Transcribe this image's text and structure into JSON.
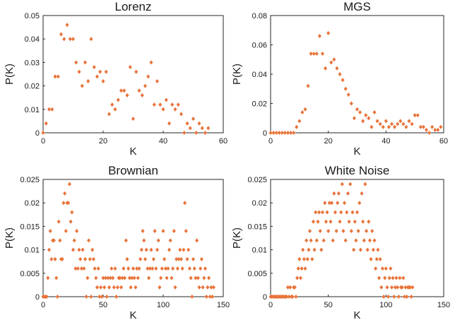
{
  "chart_data": [
    {
      "type": "scatter",
      "title": "Lorenz",
      "xlabel": "K",
      "ylabel": "P(K)",
      "xlim": [
        0,
        60
      ],
      "ylim": [
        0,
        0.05
      ],
      "xticks": [
        0,
        20,
        40,
        60
      ],
      "xtick_labels": [
        "0",
        "20",
        "40",
        "60"
      ],
      "yticks": [
        0,
        0.01,
        0.02,
        0.03,
        0.04,
        0.05
      ],
      "ytick_labels": [
        "0",
        "0.01",
        "0.02",
        "0.03",
        "0.04",
        "0.05"
      ],
      "color": "#e8743b",
      "marker": "diamond",
      "x": [
        0,
        1,
        2,
        3,
        4,
        5,
        6,
        7,
        8,
        9,
        10,
        11,
        12,
        13,
        14,
        15,
        16,
        17,
        18,
        19,
        20,
        21,
        22,
        23,
        24,
        25,
        26,
        27,
        28,
        29,
        30,
        31,
        32,
        33,
        34,
        35,
        36,
        37,
        38,
        39,
        40,
        41,
        42,
        43,
        44,
        45,
        46,
        47,
        48,
        49,
        50,
        51,
        52,
        53,
        54,
        55
      ],
      "y": [
        0,
        0.004,
        0.01,
        0.01,
        0.024,
        0.024,
        0.042,
        0.04,
        0.046,
        0.04,
        0.04,
        0.03,
        0.026,
        0.02,
        0.03,
        0.022,
        0.04,
        0.028,
        0.024,
        0.026,
        0.022,
        0.026,
        0.008,
        0.012,
        0.01,
        0.014,
        0.018,
        0.018,
        0.016,
        0.028,
        0.006,
        0.026,
        0.018,
        0.016,
        0.02,
        0.024,
        0.03,
        0.012,
        0.022,
        0.012,
        0.01,
        0.014,
        0.004,
        0.012,
        0.01,
        0.012,
        0.008,
        0,
        0.004,
        0.002,
        0.006,
        0,
        0.004,
        0.002,
        0,
        0.002
      ]
    },
    {
      "type": "scatter",
      "title": "MGS",
      "xlabel": "K",
      "ylabel": "P(K)",
      "xlim": [
        0,
        60
      ],
      "ylim": [
        0,
        0.08
      ],
      "xticks": [
        0,
        20,
        40,
        60
      ],
      "xtick_labels": [
        "0",
        "20",
        "40",
        "60"
      ],
      "yticks": [
        0,
        0.02,
        0.04,
        0.06,
        0.08
      ],
      "ytick_labels": [
        "0",
        "0.02",
        "0.04",
        "0.06",
        "0.08"
      ],
      "color": "#e8743b",
      "marker": "diamond",
      "x": [
        0,
        1,
        2,
        3,
        4,
        5,
        6,
        7,
        8,
        9,
        10,
        11,
        12,
        13,
        14,
        15,
        16,
        17,
        18,
        19,
        20,
        21,
        22,
        23,
        24,
        25,
        26,
        27,
        28,
        29,
        30,
        31,
        32,
        33,
        34,
        35,
        36,
        37,
        38,
        39,
        40,
        41,
        42,
        43,
        44,
        45,
        46,
        47,
        48,
        49,
        50,
        51,
        52,
        53,
        54,
        55,
        56,
        57,
        58,
        59
      ],
      "y": [
        0,
        0,
        0,
        0,
        0,
        0,
        0,
        0,
        0,
        0.004,
        0.008,
        0.014,
        0.016,
        0.032,
        0.054,
        0.054,
        0.054,
        0.066,
        0.054,
        0.044,
        0.068,
        0.048,
        0.05,
        0.044,
        0.04,
        0.036,
        0.03,
        0.026,
        0.02,
        0.01,
        0.016,
        0.014,
        0.008,
        0.012,
        0.01,
        0.004,
        0.014,
        0.008,
        0.006,
        0.004,
        0.008,
        0.004,
        0.006,
        0.004,
        0.006,
        0.008,
        0.006,
        0.004,
        0.008,
        0.006,
        0.012,
        0.012,
        0.004,
        0.004,
        0.002,
        0,
        0.004,
        0.002,
        0.002,
        0.004
      ]
    },
    {
      "type": "scatter",
      "title": "Brownian",
      "xlabel": "K",
      "ylabel": "P(K)",
      "xlim": [
        0,
        150
      ],
      "ylim": [
        0,
        0.025
      ],
      "xticks": [
        0,
        50,
        100,
        150
      ],
      "xtick_labels": [
        "0",
        "50",
        "100",
        "150"
      ],
      "yticks": [
        0,
        0.005,
        0.01,
        0.015,
        0.02,
        0.025
      ],
      "ytick_labels": [
        "0",
        "0.005",
        "0.01",
        "0.015",
        "0.02",
        "0.025"
      ],
      "color": "#e8743b",
      "marker": "diamond",
      "x": [
        0,
        1,
        2,
        3,
        4,
        5,
        6,
        7,
        8,
        9,
        10,
        11,
        12,
        13,
        14,
        15,
        16,
        17,
        18,
        19,
        20,
        21,
        22,
        23,
        24,
        25,
        26,
        27,
        28,
        29,
        30,
        31,
        32,
        33,
        34,
        35,
        36,
        37,
        38,
        39,
        40,
        41,
        42,
        43,
        44,
        45,
        46,
        47,
        48,
        49,
        50,
        51,
        52,
        53,
        54,
        55,
        56,
        57,
        58,
        59,
        60,
        61,
        62,
        63,
        64,
        65,
        66,
        67,
        68,
        69,
        70,
        71,
        72,
        73,
        74,
        75,
        76,
        77,
        78,
        79,
        80,
        81,
        82,
        83,
        84,
        85,
        86,
        87,
        88,
        89,
        90,
        91,
        92,
        93,
        94,
        95,
        96,
        97,
        98,
        99,
        100,
        101,
        102,
        103,
        104,
        105,
        106,
        107,
        108,
        109,
        110,
        111,
        112,
        113,
        114,
        115,
        116,
        117,
        118,
        119,
        120,
        121,
        122,
        123,
        124,
        125,
        126,
        127,
        128,
        129,
        130,
        131,
        132,
        133,
        134,
        135,
        136,
        137,
        138,
        139,
        140,
        141,
        142
      ],
      "y": [
        0,
        0,
        0,
        0,
        0.004,
        0.01,
        0.014,
        0.008,
        0.012,
        0.012,
        0.008,
        0.004,
        0,
        0.016,
        0.012,
        0.008,
        0.008,
        0.02,
        0.022,
        0.014,
        0.02,
        0.02,
        0.024,
        0.016,
        0.018,
        0.01,
        0.012,
        0.006,
        0.014,
        0.006,
        0.01,
        0.008,
        0.006,
        0.01,
        0.006,
        0.008,
        0,
        0.004,
        0.012,
        0.008,
        0,
        0.01,
        0.008,
        0.006,
        0.004,
        0.002,
        0.006,
        0,
        0.002,
        0,
        0.004,
        0.002,
        0.004,
        0,
        0.004,
        0.002,
        0.004,
        0.006,
        0.004,
        0.002,
        0.006,
        0,
        0.002,
        0.004,
        0.004,
        0.002,
        0.004,
        0.006,
        0.004,
        0.012,
        0.008,
        0.006,
        0.004,
        0.002,
        0.004,
        0.006,
        0.004,
        0.002,
        0.006,
        0.004,
        0.006,
        0.008,
        0.01,
        0.014,
        0.012,
        0.008,
        0.01,
        0.006,
        0.004,
        0.006,
        0.01,
        0.006,
        0.008,
        0.014,
        0.006,
        0.01,
        0.012,
        0.002,
        0.004,
        0.006,
        0.014,
        0.008,
        0.006,
        0.004,
        0.006,
        0.01,
        0.012,
        0.004,
        0.006,
        0.014,
        0.002,
        0.008,
        0.006,
        0.008,
        0.01,
        0.008,
        0.006,
        0.01,
        0.02,
        0.014,
        0.008,
        0.01,
        0.006,
        0.004,
        0,
        0.008,
        0.006,
        0.004,
        0.012,
        0.004,
        0.002,
        0.006,
        0.008,
        0.002,
        0.004,
        0.006,
        0,
        0.002,
        0.004,
        0,
        0.002,
        0,
        0.002
      ]
    },
    {
      "type": "scatter",
      "title": "White Noise",
      "xlabel": "K",
      "ylabel": "P(K)",
      "xlim": [
        0,
        150
      ],
      "ylim": [
        0,
        0.025
      ],
      "xticks": [
        0,
        50,
        100,
        150
      ],
      "xtick_labels": [
        "0",
        "50",
        "100",
        "150"
      ],
      "yticks": [
        0,
        0.005,
        0.01,
        0.015,
        0.02,
        0.025
      ],
      "ytick_labels": [
        "0",
        "0.005",
        "0.01",
        "0.015",
        "0.02",
        "0.025"
      ],
      "color": "#e8743b",
      "marker": "diamond",
      "x": [
        0,
        1,
        2,
        3,
        4,
        5,
        6,
        7,
        8,
        9,
        10,
        11,
        12,
        13,
        14,
        15,
        16,
        17,
        18,
        19,
        20,
        21,
        22,
        23,
        24,
        25,
        26,
        27,
        28,
        29,
        30,
        31,
        32,
        33,
        34,
        35,
        36,
        37,
        38,
        39,
        40,
        41,
        42,
        43,
        44,
        45,
        46,
        47,
        48,
        49,
        50,
        51,
        52,
        53,
        54,
        55,
        56,
        57,
        58,
        59,
        60,
        61,
        62,
        63,
        64,
        65,
        66,
        67,
        68,
        69,
        70,
        71,
        72,
        73,
        74,
        75,
        76,
        77,
        78,
        79,
        80,
        81,
        82,
        83,
        84,
        85,
        86,
        87,
        88,
        89,
        90,
        91,
        92,
        93,
        94,
        95,
        96,
        97,
        98,
        99,
        100,
        101,
        102,
        103,
        104,
        105,
        106,
        107,
        108,
        109,
        110,
        111,
        112,
        113,
        114,
        115,
        116,
        117,
        118,
        119,
        120,
        121,
        122,
        123
      ],
      "y": [
        0,
        0,
        0,
        0,
        0,
        0,
        0,
        0,
        0,
        0,
        0,
        0,
        0,
        0,
        0,
        0.002,
        0,
        0.002,
        0,
        0,
        0.002,
        0.002,
        0,
        0.004,
        0.006,
        0.008,
        0.004,
        0.006,
        0.01,
        0.008,
        0.006,
        0.012,
        0.008,
        0.01,
        0.014,
        0.012,
        0.008,
        0.016,
        0.01,
        0.018,
        0.012,
        0.016,
        0.018,
        0.014,
        0.01,
        0.018,
        0.012,
        0.02,
        0.016,
        0.018,
        0.014,
        0.02,
        0.016,
        0.02,
        0.012,
        0.022,
        0.018,
        0.014,
        0.02,
        0.022,
        0.016,
        0.018,
        0.024,
        0.014,
        0.02,
        0.012,
        0.018,
        0.022,
        0.016,
        0.024,
        0.014,
        0.018,
        0.01,
        0.016,
        0.012,
        0.018,
        0.014,
        0.02,
        0.01,
        0.022,
        0.016,
        0.012,
        0.024,
        0.014,
        0.01,
        0.016,
        0.012,
        0.008,
        0.014,
        0.01,
        0.012,
        0.006,
        0.008,
        0.01,
        0.004,
        0.008,
        0.002,
        0.006,
        0,
        0.004,
        0.006,
        0.002,
        0,
        0.004,
        0.006,
        0.002,
        0.004,
        0,
        0.002,
        0.004,
        0.002,
        0,
        0.004,
        0.002,
        0.002,
        0.004,
        0,
        0.002,
        0,
        0.002,
        0.002,
        0.002,
        0,
        0.002
      ]
    }
  ]
}
